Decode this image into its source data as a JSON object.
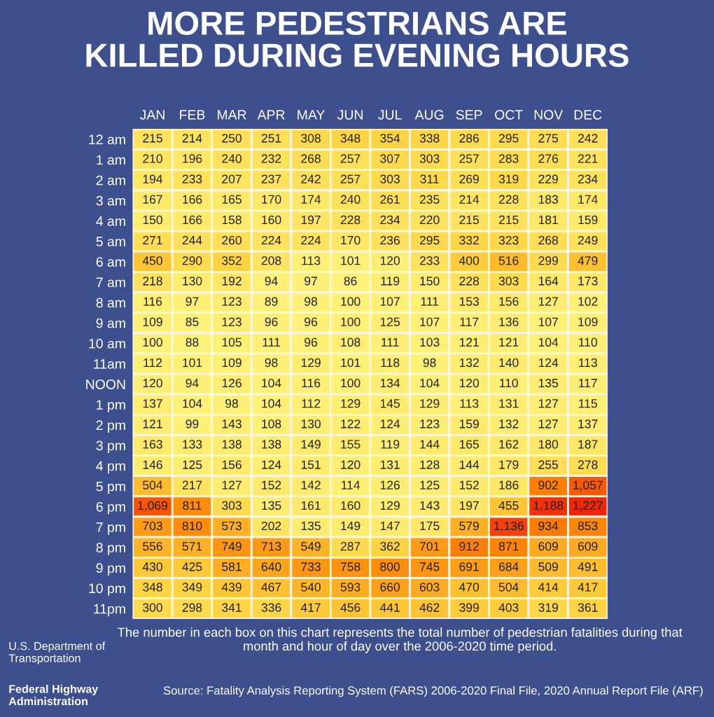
{
  "chart_data": {
    "type": "heatmap",
    "title": "MORE PEDESTRIANS ARE\nKILLED DURING EVENING HOURS",
    "categories": [
      "JAN",
      "FEB",
      "MAR",
      "APR",
      "MAY",
      "JUN",
      "JUL",
      "AUG",
      "SEP",
      "OCT",
      "NOV",
      "DEC"
    ],
    "y_categories": [
      "12 am",
      "1 am",
      "2 am",
      "3 am",
      "4 am",
      "5 am",
      "6 am",
      "7 am",
      "8 am",
      "9 am",
      "10 am",
      "11am",
      "NOON",
      "1 pm",
      "2 pm",
      "3 pm",
      "4 pm",
      "5 pm",
      "6 pm",
      "7 pm",
      "8 pm",
      "9 pm",
      "10 pm",
      "11pm"
    ],
    "cells": [
      [
        215,
        214,
        250,
        251,
        308,
        348,
        354,
        338,
        286,
        295,
        275,
        242
      ],
      [
        210,
        196,
        240,
        232,
        268,
        257,
        307,
        303,
        257,
        283,
        276,
        221
      ],
      [
        194,
        233,
        207,
        237,
        242,
        257,
        303,
        311,
        269,
        319,
        229,
        234
      ],
      [
        167,
        166,
        165,
        170,
        174,
        240,
        261,
        235,
        214,
        228,
        183,
        174
      ],
      [
        150,
        166,
        158,
        160,
        197,
        228,
        234,
        220,
        215,
        215,
        181,
        159
      ],
      [
        271,
        244,
        260,
        224,
        224,
        170,
        236,
        295,
        332,
        323,
        268,
        249
      ],
      [
        450,
        290,
        352,
        208,
        113,
        101,
        120,
        233,
        400,
        516,
        299,
        479
      ],
      [
        218,
        130,
        192,
        94,
        97,
        86,
        119,
        150,
        228,
        303,
        164,
        173
      ],
      [
        116,
        97,
        123,
        89,
        98,
        100,
        107,
        111,
        153,
        156,
        127,
        102
      ],
      [
        109,
        85,
        123,
        96,
        96,
        100,
        125,
        107,
        117,
        136,
        107,
        109
      ],
      [
        100,
        88,
        105,
        111,
        96,
        108,
        111,
        103,
        121,
        121,
        104,
        110
      ],
      [
        112,
        101,
        109,
        98,
        129,
        101,
        118,
        98,
        132,
        140,
        124,
        113
      ],
      [
        120,
        94,
        126,
        104,
        116,
        100,
        134,
        104,
        120,
        110,
        135,
        117
      ],
      [
        137,
        104,
        98,
        104,
        112,
        129,
        145,
        129,
        113,
        131,
        127,
        115
      ],
      [
        121,
        99,
        143,
        108,
        130,
        122,
        124,
        123,
        159,
        132,
        127,
        137
      ],
      [
        163,
        133,
        138,
        138,
        149,
        155,
        119,
        144,
        165,
        162,
        180,
        187
      ],
      [
        146,
        125,
        156,
        124,
        151,
        120,
        131,
        128,
        144,
        179,
        255,
        278
      ],
      [
        504,
        217,
        127,
        152,
        142,
        114,
        126,
        125,
        152,
        186,
        902,
        1057
      ],
      [
        1069,
        811,
        303,
        135,
        161,
        160,
        129,
        143,
        197,
        455,
        1188,
        1227
      ],
      [
        703,
        810,
        573,
        202,
        135,
        149,
        147,
        175,
        579,
        1136,
        934,
        853
      ],
      [
        556,
        571,
        749,
        713,
        549,
        287,
        362,
        701,
        912,
        871,
        609,
        609
      ],
      [
        430,
        425,
        581,
        640,
        733,
        758,
        800,
        745,
        691,
        684,
        509,
        491
      ],
      [
        348,
        349,
        439,
        467,
        540,
        593,
        660,
        603,
        470,
        504,
        414,
        417
      ],
      [
        300,
        298,
        341,
        336,
        417,
        456,
        441,
        462,
        399,
        403,
        319,
        361
      ]
    ],
    "cell_labels": [
      [
        "215",
        "214",
        "250",
        "251",
        "308",
        "348",
        "354",
        "338",
        "286",
        "295",
        "275",
        "242"
      ],
      [
        "210",
        "196",
        "240",
        "232",
        "268",
        "257",
        "307",
        "303",
        "257",
        "283",
        "276",
        "221"
      ],
      [
        "194",
        "233",
        "207",
        "237",
        "242",
        "257",
        "303",
        "311",
        "269",
        "319",
        "229",
        "234"
      ],
      [
        "167",
        "166",
        "165",
        "170",
        "174",
        "240",
        "261",
        "235",
        "214",
        "228",
        "183",
        "174"
      ],
      [
        "150",
        "166",
        "158",
        "160",
        "197",
        "228",
        "234",
        "220",
        "215",
        "215",
        "181",
        "159"
      ],
      [
        "271",
        "244",
        "260",
        "224",
        "224",
        "170",
        "236",
        "295",
        "332",
        "323",
        "268",
        "249"
      ],
      [
        "450",
        "290",
        "352",
        "208",
        "113",
        "101",
        "120",
        "233",
        "400",
        "516",
        "299",
        "479"
      ],
      [
        "218",
        "130",
        "192",
        "94",
        "97",
        "86",
        "119",
        "150",
        "228",
        "303",
        "164",
        "173"
      ],
      [
        "116",
        "97",
        "123",
        "89",
        "98",
        "100",
        "107",
        "111",
        "153",
        "156",
        "127",
        "102"
      ],
      [
        "109",
        "85",
        "123",
        "96",
        "96",
        "100",
        "125",
        "107",
        "117",
        "136",
        "107",
        "109"
      ],
      [
        "100",
        "88",
        "105",
        "111",
        "96",
        "108",
        "111",
        "103",
        "121",
        "121",
        "104",
        "110"
      ],
      [
        "112",
        "101",
        "109",
        "98",
        "129",
        "101",
        "118",
        "98",
        "132",
        "140",
        "124",
        "113"
      ],
      [
        "120",
        "94",
        "126",
        "104",
        "116",
        "100",
        "134",
        "104",
        "120",
        "110",
        "135",
        "117"
      ],
      [
        "137",
        "104",
        "98",
        "104",
        "112",
        "129",
        "145",
        "129",
        "113",
        "131",
        "127",
        "115"
      ],
      [
        "121",
        "99",
        "143",
        "108",
        "130",
        "122",
        "124",
        "123",
        "159",
        "132",
        "127",
        "137"
      ],
      [
        "163",
        "133",
        "138",
        "138",
        "149",
        "155",
        "119",
        "144",
        "165",
        "162",
        "180",
        "187"
      ],
      [
        "146",
        "125",
        "156",
        "124",
        "151",
        "120",
        "131",
        "128",
        "144",
        "179",
        "255",
        "278"
      ],
      [
        "504",
        "217",
        "127",
        "152",
        "142",
        "114",
        "126",
        "125",
        "152",
        "186",
        "902",
        "1,057"
      ],
      [
        "1,069",
        "811",
        "303",
        "135",
        "161",
        "160",
        "129",
        "143",
        "197",
        "455",
        "1,188",
        "1,227"
      ],
      [
        "703",
        "810",
        "573",
        "202",
        "135",
        "149",
        "147",
        "175",
        "579",
        "1,136",
        "934",
        "853"
      ],
      [
        "556",
        "571",
        "749",
        "713",
        "549",
        "287",
        "362",
        "701",
        "912",
        "871",
        "609",
        "609"
      ],
      [
        "430",
        "425",
        "581",
        "640",
        "733",
        "758",
        "800",
        "745",
        "691",
        "684",
        "509",
        "491"
      ],
      [
        "348",
        "349",
        "439",
        "467",
        "540",
        "593",
        "660",
        "603",
        "470",
        "504",
        "414",
        "417"
      ],
      [
        "300",
        "298",
        "341",
        "336",
        "417",
        "456",
        "441",
        "462",
        "399",
        "403",
        "319",
        "361"
      ]
    ],
    "annotations": [
      "The number in each box on this chart represents the total number of pedestrian fatalities during that month and hour of day over the 2006-2020 time period.",
      "Source: Fatality Analysis Reporting System (FARS) 2006-2020 Final File, 2020 Annual Report File (ARF)",
      "U.S. Department of Transportation",
      "Federal Highway Administration"
    ]
  }
}
